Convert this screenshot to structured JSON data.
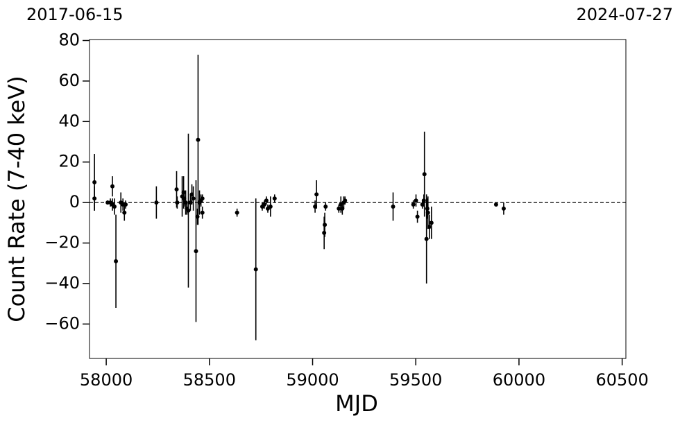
{
  "chart_data": {
    "type": "errorbar",
    "x_label": "MJD",
    "y_label": "Count Rate (7-40 keV)",
    "top_labels": [
      "2017-06-15",
      "2024-07-27"
    ],
    "xlim": [
      57919,
      60518
    ],
    "xticks": [
      58000,
      58500,
      59000,
      59500,
      60000,
      60500
    ],
    "ylim": [
      -77,
      80.5
    ],
    "yticks": [
      {
        "value": -60,
        "label": "−60"
      },
      {
        "value": -40,
        "label": "−40"
      },
      {
        "value": -20,
        "label": "−20"
      },
      0,
      20,
      40,
      60,
      80
    ],
    "hline": 0,
    "series": [
      {
        "color": "#000000",
        "x": [
          57943,
          57943,
          58007,
          58020,
          58030,
          58030,
          58040,
          58047,
          58071,
          58081,
          58088,
          58094,
          58243,
          58341,
          58344,
          58368,
          58375,
          58378,
          58385,
          58391,
          58398,
          58408,
          58415,
          58422,
          58435,
          58442,
          58445,
          58452,
          58459,
          58466,
          58466,
          58634,
          58725,
          58756,
          58766,
          58776,
          58783,
          58796,
          58816,
          59012,
          59019,
          59056,
          59059,
          59063,
          59127,
          59137,
          59144,
          59151,
          59157,
          59390,
          59488,
          59501,
          59508,
          59532,
          59539,
          59542,
          59552,
          59556,
          59559,
          59566,
          59576,
          59889,
          59926
        ],
        "values": [
          10,
          2,
          0,
          0,
          8,
          -1,
          -2,
          -29,
          0,
          -1,
          -5,
          -1,
          0,
          6.5,
          0,
          3,
          5,
          2,
          0,
          -3,
          -4,
          0,
          4,
          2,
          -24,
          -7,
          31,
          0,
          1,
          -5,
          2,
          -5,
          -33,
          -2,
          -1,
          1,
          -3,
          -2,
          2,
          -2,
          4,
          -15,
          -11,
          -2,
          -3,
          -1,
          -3,
          0,
          1,
          -2,
          -1,
          1,
          -7,
          -1,
          1,
          14,
          -18,
          -3,
          -5,
          -12,
          -10,
          -1,
          -3
        ],
        "errors": [
          14,
          6,
          1,
          2,
          5,
          3,
          4,
          23,
          5,
          3,
          4,
          2,
          8,
          9,
          3,
          10,
          8,
          4,
          6,
          3,
          38,
          4,
          5,
          6,
          35,
          4,
          42,
          6,
          3,
          3,
          2,
          2,
          35,
          2,
          2,
          2,
          2,
          5,
          2,
          3,
          7,
          8,
          6,
          2,
          2,
          4,
          3,
          3,
          2,
          7,
          2,
          3,
          3,
          2,
          3,
          21,
          22,
          5,
          8,
          6,
          8,
          1,
          3
        ]
      }
    ]
  }
}
